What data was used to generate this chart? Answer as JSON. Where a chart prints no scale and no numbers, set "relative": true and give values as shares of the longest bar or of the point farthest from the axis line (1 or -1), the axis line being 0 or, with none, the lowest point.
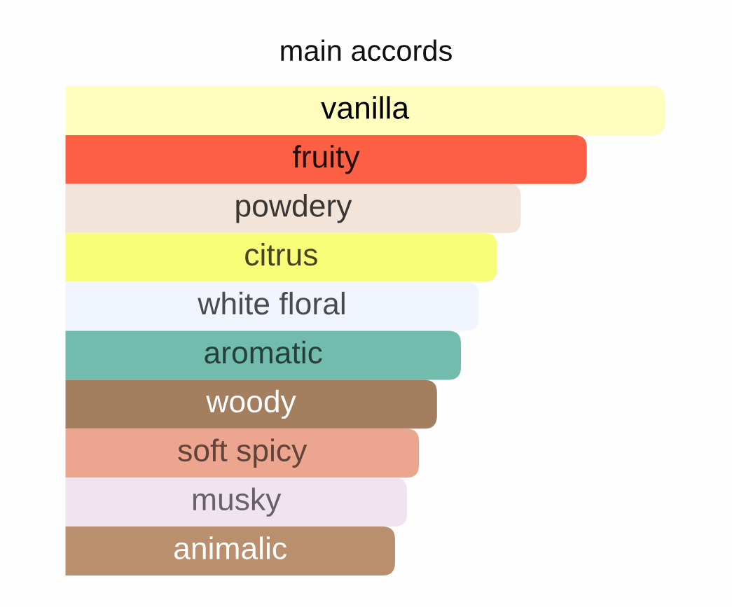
{
  "chart_data": {
    "type": "bar",
    "orientation": "horizontal",
    "relative": true,
    "title": "main accords",
    "categories": [
      "vanilla",
      "fruity",
      "powdery",
      "citrus",
      "white floral",
      "aromatic",
      "woody",
      "soft spicy",
      "musky",
      "animalic"
    ],
    "values": [
      1,
      0.87,
      0.76,
      0.72,
      0.69,
      0.66,
      0.62,
      0.59,
      0.57,
      0.55
    ],
    "colors": [
      "#fefdbd",
      "#fd5f44",
      "#f2e4d8",
      "#f9fe78",
      "#f1f5fd",
      "#71bcad",
      "#a47f5f",
      "#eca68f",
      "#f0e4f1",
      "#b98f6e"
    ]
  }
}
